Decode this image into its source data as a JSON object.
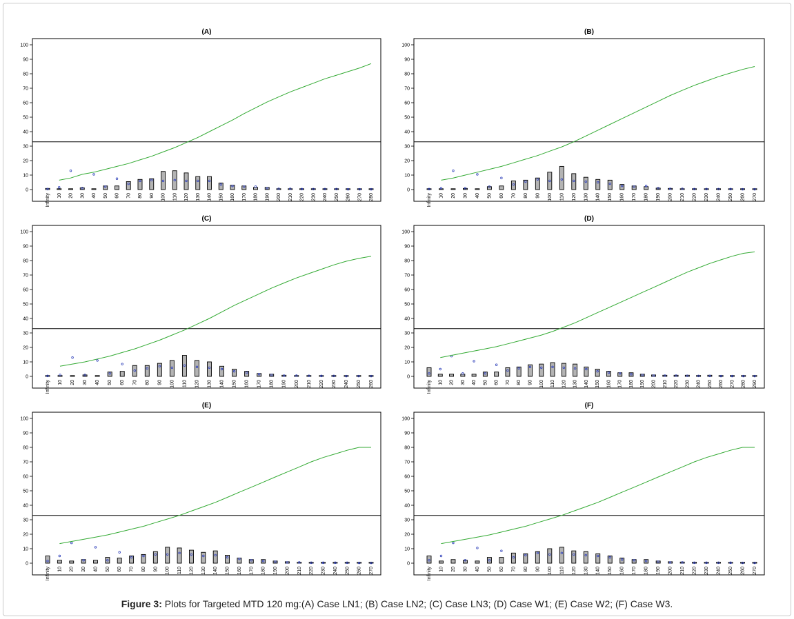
{
  "caption": {
    "label": "Figure 3:",
    "text": "Plots for Targeted MTD 120 mg:(A) Case LN1; (B) Case LN2; (C) Case LN3; (D) Case W1; (E) Case W2; (F) Case W3."
  },
  "colors": {
    "curve": "#33aa33",
    "bar_fill": "#b4b4b4",
    "marker": "#3344bb",
    "line": "#000000"
  },
  "chart_data": [
    {
      "type": "bar",
      "title": "(A)",
      "ylim": [
        0,
        100
      ],
      "yticks": [
        0,
        10,
        20,
        30,
        40,
        50,
        60,
        70,
        80,
        90,
        100
      ],
      "threshold": 33,
      "categories": [
        "Infinity",
        "10",
        "20",
        "30",
        "40",
        "50",
        "60",
        "70",
        "80",
        "90",
        "100",
        "110",
        "120",
        "130",
        "140",
        "150",
        "160",
        "170",
        "180",
        "190",
        "200",
        "210",
        "220",
        "230",
        "240",
        "250",
        "260",
        "270",
        "280"
      ],
      "values": [
        0.8,
        0.5,
        0.5,
        1.2,
        0.5,
        2.5,
        2.5,
        5.5,
        7,
        7.5,
        12.5,
        13,
        11.5,
        9,
        9,
        4.5,
        3,
        2.5,
        1.5,
        1.5,
        0.5,
        0.5,
        0.5,
        0.5,
        0.5,
        0.5,
        0.3,
        0.3,
        0.3
      ],
      "markers": [
        0.3,
        1.5,
        13,
        1,
        10.5,
        2,
        7.5,
        4,
        6,
        6.5,
        6,
        6.5,
        6,
        6,
        6,
        3.5,
        2.5,
        2,
        2,
        1,
        0.5,
        0.5,
        0.3,
        0.3,
        0.3,
        0.3,
        0.2,
        0.2,
        0.2
      ],
      "curve": [
        null,
        6.5,
        8,
        10.5,
        12,
        14,
        16,
        18,
        20.5,
        23,
        26,
        29,
        32.5,
        36,
        40,
        44,
        48,
        52.5,
        56.5,
        60.5,
        64,
        67.5,
        70.5,
        73.5,
        76.5,
        79,
        81.5,
        84,
        87
      ]
    },
    {
      "type": "bar",
      "title": "(B)",
      "ylim": [
        0,
        100
      ],
      "yticks": [
        0,
        10,
        20,
        30,
        40,
        50,
        60,
        70,
        80,
        90,
        100
      ],
      "threshold": 33,
      "categories": [
        "Infinity",
        "10",
        "20",
        "30",
        "40",
        "50",
        "60",
        "70",
        "80",
        "90",
        "100",
        "110",
        "120",
        "130",
        "140",
        "150",
        "160",
        "170",
        "180",
        "190",
        "200",
        "210",
        "220",
        "230",
        "240",
        "250",
        "260",
        "270"
      ],
      "values": [
        0.5,
        0.5,
        0.5,
        0.8,
        0.5,
        2,
        2.5,
        6,
        6.5,
        8,
        12,
        16,
        11,
        8.5,
        7,
        6.5,
        3.5,
        2.5,
        2,
        1,
        0.8,
        0.5,
        0.4,
        0.4,
        0.3,
        0.3,
        0.3,
        0.3
      ],
      "markers": [
        0.3,
        1,
        13,
        1,
        10.5,
        2,
        8,
        3.5,
        5.5,
        7,
        6,
        7,
        6,
        5.5,
        5,
        4,
        2.5,
        2,
        2.5,
        1,
        0.5,
        0.5,
        0.3,
        0.3,
        0.3,
        0.3,
        0.2,
        0.2
      ],
      "curve": [
        null,
        6.5,
        8,
        10,
        12,
        14,
        16,
        18.5,
        21,
        23.5,
        26.5,
        29.5,
        33,
        37,
        41,
        45,
        49,
        53,
        57,
        61,
        65,
        68.5,
        72,
        75,
        78,
        80.5,
        83,
        85
      ]
    },
    {
      "type": "bar",
      "title": "(C)",
      "ylim": [
        0,
        100
      ],
      "yticks": [
        0,
        10,
        20,
        30,
        40,
        50,
        60,
        70,
        80,
        90,
        100
      ],
      "threshold": 33,
      "categories": [
        "Infinity",
        "10",
        "20",
        "30",
        "40",
        "50",
        "60",
        "70",
        "80",
        "90",
        "100",
        "110",
        "120",
        "130",
        "140",
        "150",
        "160",
        "170",
        "180",
        "190",
        "200",
        "210",
        "220",
        "230",
        "240",
        "250",
        "260"
      ],
      "values": [
        0.5,
        0.5,
        0.5,
        1,
        0.5,
        3,
        3.5,
        7.5,
        7.5,
        9,
        11,
        14.5,
        11,
        10,
        7,
        5,
        3.5,
        2,
        1.5,
        0.8,
        0.5,
        0.5,
        0.4,
        0.4,
        0.3,
        0.3,
        0.3
      ],
      "markers": [
        0.3,
        1,
        13,
        1,
        11,
        2,
        8.5,
        4,
        5.5,
        7,
        6,
        7.5,
        6.5,
        6,
        5,
        3.5,
        2.5,
        1.5,
        1,
        0.5,
        0.5,
        0.4,
        0.3,
        0.3,
        0.2,
        0.2,
        0.2
      ],
      "curve": [
        null,
        7,
        8.5,
        10,
        12,
        14,
        16.5,
        19,
        22,
        25,
        28.5,
        32,
        36,
        40,
        44.5,
        49,
        53,
        57,
        61,
        64.5,
        68,
        71,
        74,
        77,
        79.5,
        81.5,
        83
      ]
    },
    {
      "type": "bar",
      "title": "(D)",
      "ylim": [
        0,
        100
      ],
      "yticks": [
        0,
        10,
        20,
        30,
        40,
        50,
        60,
        70,
        80,
        90,
        100
      ],
      "threshold": 33,
      "categories": [
        "Infinity",
        "10",
        "20",
        "30",
        "40",
        "50",
        "60",
        "70",
        "80",
        "90",
        "100",
        "110",
        "120",
        "130",
        "140",
        "150",
        "160",
        "170",
        "180",
        "190",
        "200",
        "210",
        "220",
        "230",
        "240",
        "250",
        "260",
        "270",
        "280",
        "290"
      ],
      "values": [
        6,
        1.5,
        1.5,
        1.5,
        1.5,
        3,
        3,
        6,
        6.5,
        8,
        8.5,
        9.5,
        9,
        8.5,
        6.5,
        5,
        3.5,
        2.5,
        2.5,
        1.5,
        1,
        0.8,
        0.8,
        0.8,
        0.6,
        0.8,
        0.3,
        0.3,
        0.3,
        0.2
      ],
      "markers": [
        2,
        5,
        14,
        2,
        10.5,
        2,
        8,
        4,
        5.5,
        6.5,
        6,
        6.5,
        6,
        5.5,
        5,
        3.5,
        2.5,
        2,
        1.5,
        1,
        0.5,
        0.5,
        0.5,
        0.4,
        0.3,
        0.3,
        0.2,
        0.2,
        0.2,
        0.2
      ],
      "curve": [
        null,
        13,
        14.5,
        16,
        17.5,
        19,
        20.5,
        22.5,
        24.5,
        26.5,
        28.5,
        31,
        34,
        37,
        40.5,
        44,
        47.5,
        51,
        54.5,
        58,
        61.5,
        65,
        68.5,
        72,
        75,
        78,
        80.5,
        83,
        85,
        86
      ]
    },
    {
      "type": "bar",
      "title": "(E)",
      "ylim": [
        0,
        100
      ],
      "yticks": [
        0,
        10,
        20,
        30,
        40,
        50,
        60,
        70,
        80,
        90,
        100
      ],
      "threshold": 33,
      "categories": [
        "Infinity",
        "10",
        "20",
        "30",
        "40",
        "50",
        "60",
        "70",
        "80",
        "90",
        "100",
        "110",
        "120",
        "130",
        "140",
        "150",
        "160",
        "170",
        "180",
        "190",
        "200",
        "210",
        "220",
        "230",
        "240",
        "250",
        "260",
        "270"
      ],
      "values": [
        5,
        2,
        1.5,
        2.5,
        2,
        4,
        3.5,
        5,
        6,
        8,
        11,
        10.5,
        9,
        7.5,
        8.5,
        5.5,
        3.5,
        2.5,
        2.5,
        1.5,
        1,
        0.6,
        0.5,
        0.5,
        0.4,
        0.4,
        0.2,
        0.2
      ],
      "markers": [
        1.5,
        5,
        14,
        2,
        11,
        2,
        7.5,
        4,
        5,
        6,
        6,
        7,
        6,
        5,
        5.5,
        4,
        3,
        2,
        1.5,
        1,
        0.5,
        0.5,
        0.3,
        0.3,
        0.3,
        0.3,
        0.2,
        0.2
      ],
      "curve": [
        null,
        13.5,
        15,
        16.5,
        18,
        19.5,
        21.5,
        23.5,
        25.5,
        28,
        30.5,
        33,
        36,
        39,
        42,
        45.5,
        49,
        52.5,
        56,
        59.5,
        63,
        66.5,
        70,
        73,
        75.5,
        78,
        80,
        80
      ]
    },
    {
      "type": "bar",
      "title": "(F)",
      "ylim": [
        0,
        100
      ],
      "yticks": [
        0,
        10,
        20,
        30,
        40,
        50,
        60,
        70,
        80,
        90,
        100
      ],
      "threshold": 33,
      "categories": [
        "Infinity",
        "10",
        "20",
        "30",
        "40",
        "50",
        "60",
        "70",
        "80",
        "90",
        "100",
        "110",
        "120",
        "130",
        "140",
        "150",
        "160",
        "170",
        "180",
        "190",
        "200",
        "210",
        "220",
        "230",
        "240",
        "250",
        "260",
        "270"
      ],
      "values": [
        5,
        1.5,
        2.5,
        2,
        1.5,
        4,
        4,
        7,
        6.5,
        8,
        10,
        11,
        8.5,
        8,
        6.5,
        5,
        3.5,
        2.5,
        2.5,
        1.5,
        1,
        0.8,
        0.6,
        0.6,
        0.4,
        0.5,
        0.2,
        0.2
      ],
      "markers": [
        2,
        5,
        14,
        2,
        10.5,
        2,
        8.5,
        4,
        5.5,
        7,
        6,
        7,
        6,
        5.5,
        5,
        4,
        2.5,
        2,
        1.5,
        1,
        0.5,
        0.5,
        0.3,
        0.3,
        0.3,
        0.3,
        0.2,
        0.2
      ],
      "curve": [
        null,
        13.5,
        15,
        16.5,
        18,
        19.5,
        21.5,
        23.5,
        25.5,
        28,
        30.5,
        33,
        36,
        39,
        42,
        45.5,
        49,
        52.5,
        56,
        59.5,
        63,
        66.5,
        70,
        73,
        75.5,
        78,
        80,
        80
      ]
    }
  ]
}
